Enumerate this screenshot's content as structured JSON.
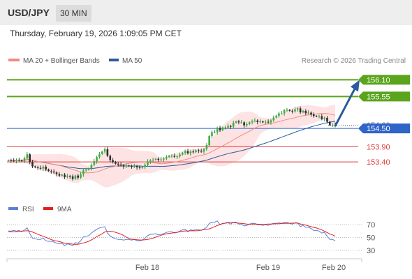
{
  "header": {
    "symbol": "USD/JPY",
    "timeframe": "30 MIN"
  },
  "datetime": "Thursday, February 19, 2026 1:09:05 PM CET",
  "legend": {
    "ma20_bb": "MA 20 + Bollinger Bands",
    "ma50": "MA 50",
    "credit": "Research © 2026 Trading Central",
    "rsi": "RSI",
    "rsi_ma": "9MA"
  },
  "colors": {
    "ma20": "#f28b82",
    "bands": "#fde3e3",
    "ma50": "#2c5a9c",
    "resistance": "#5aa51c",
    "support": "#e03b3b",
    "pivot": "#2f64c8",
    "arrow": "#2c5a9c",
    "rsi": "#5b7fd6",
    "rsi_ma": "#e02020"
  },
  "chart_data": [
    {
      "type": "candlestick",
      "title": "USD/JPY",
      "ylim": [
        152.3,
        156.5
      ],
      "levels": [
        {
          "value": 156.1,
          "label": "156.10",
          "kind": "resistance"
        },
        {
          "value": 155.55,
          "label": "155.55",
          "kind": "resistance"
        },
        {
          "value": 154.6,
          "label": "154.60",
          "kind": "current"
        },
        {
          "value": 154.5,
          "label": "154.50",
          "kind": "pivot"
        },
        {
          "value": 153.9,
          "label": "153.90",
          "kind": "support"
        },
        {
          "value": 153.4,
          "label": "153.40",
          "kind": "support"
        }
      ],
      "x_ticks": [
        "Feb 18",
        "Feb 19",
        "Feb 20"
      ],
      "close": [
        153.45,
        153.44,
        153.43,
        153.47,
        153.45,
        153.42,
        153.52,
        153.65,
        153.4,
        153.25,
        153.22,
        153.2,
        153.18,
        153.24,
        153.15,
        153.1,
        153.08,
        153.05,
        153.0,
        152.95,
        152.98,
        152.9,
        152.93,
        152.92,
        152.84,
        152.95,
        152.88,
        152.99,
        153.12,
        153.14,
        153.18,
        153.3,
        153.42,
        153.56,
        153.66,
        153.74,
        153.82,
        153.6,
        153.46,
        153.4,
        153.34,
        153.31,
        153.29,
        153.25,
        153.28,
        153.26,
        153.24,
        153.26,
        153.22,
        153.2,
        153.23,
        153.3,
        153.41,
        153.45,
        153.47,
        153.5,
        153.46,
        153.48,
        153.51,
        153.56,
        153.6,
        153.6,
        153.57,
        153.58,
        153.64,
        153.7,
        153.75,
        153.68,
        153.74,
        153.72,
        153.78,
        153.76,
        153.74,
        153.82,
        153.95,
        154.25,
        154.38,
        154.38,
        154.52,
        154.44,
        154.53,
        154.53,
        154.58,
        154.56,
        154.69,
        154.73,
        154.7,
        154.7,
        154.6,
        154.64,
        154.7,
        154.74,
        154.76,
        154.71,
        154.73,
        154.7,
        154.72,
        154.7,
        154.77,
        154.86,
        154.92,
        155.0,
        155.0,
        155.1,
        155.11,
        155.08,
        155.06,
        155.13,
        155.16,
        155.03,
        155.08,
        155.0,
        155.02,
        154.96,
        154.91,
        154.9,
        154.9,
        154.81,
        154.85,
        154.72,
        154.61,
        154.62,
        154.58
      ]
    },
    {
      "type": "line",
      "title": "RSI",
      "ylim": [
        20,
        80
      ],
      "y_ticks": [
        70,
        50,
        30
      ],
      "series": [
        {
          "name": "RSI",
          "values": [
            60,
            60,
            61,
            60,
            61,
            59,
            62,
            65,
            56,
            49,
            48,
            47,
            47,
            49,
            45,
            44,
            44,
            43,
            41,
            40,
            41,
            37,
            40,
            39,
            37,
            42,
            41,
            45,
            51,
            52,
            53,
            57,
            60,
            63,
            65,
            66,
            67,
            57,
            52,
            50,
            48,
            47,
            47,
            46,
            47,
            47,
            46,
            47,
            45,
            45,
            46,
            49,
            53,
            55,
            55,
            56,
            54,
            55,
            56,
            58,
            59,
            59,
            57,
            58,
            60,
            62,
            63,
            59,
            62,
            61,
            63,
            62,
            61,
            63,
            66,
            72,
            74,
            74,
            76,
            70,
            72,
            72,
            73,
            71,
            74,
            74,
            71,
            71,
            68,
            69,
            71,
            72,
            72,
            70,
            70,
            69,
            70,
            69,
            71,
            72,
            72,
            73,
            72,
            74,
            74,
            72,
            71,
            73,
            73,
            67,
            69,
            66,
            66,
            64,
            61,
            61,
            60,
            57,
            58,
            52,
            47,
            47,
            45
          ]
        },
        {
          "name": "9MA",
          "values": [
            59.0,
            59.0,
            59.0,
            59.2,
            59.6,
            60.0,
            60.3,
            60.6,
            59.9,
            58.6,
            56.9,
            55.1,
            53.4,
            52.0,
            50.3,
            48.5,
            46.7,
            45.2,
            44.5,
            43.6,
            42.5,
            40.7,
            40.6,
            40.2,
            39.6,
            39.2,
            39.5,
            40.2,
            41.5,
            42.6,
            44.1,
            46.3,
            48.4,
            51.6,
            53.5,
            55.9,
            58.6,
            59.6,
            59.7,
            59.2,
            58.2,
            56.8,
            55.3,
            53.2,
            50.6,
            48.6,
            47.4,
            46.9,
            46.4,
            46.2,
            46.1,
            46.5,
            47.1,
            47.8,
            49.0,
            50.6,
            52.0,
            53.5,
            54.7,
            55.8,
            56.4,
            57.0,
            57.6,
            58.2,
            58.8,
            59.8,
            60.3,
            60.3,
            60.5,
            60.6,
            60.5,
            60.8,
            61.6,
            62.3,
            62.8,
            63.5,
            65.1,
            67.0,
            68.7,
            70.3,
            71.7,
            72.7,
            73.8,
            74.0,
            73.5,
            72.8,
            72.5,
            72.1,
            71.6,
            70.9,
            70.8,
            71.0,
            71.0,
            70.8,
            70.6,
            70.4,
            70.6,
            70.9,
            71.1,
            71.3,
            71.4,
            71.6,
            71.9,
            72.1,
            72.1,
            72.3,
            72.5,
            72.6,
            72.4,
            71.2,
            70.5,
            69.4,
            68.1,
            66.9,
            65.8,
            64.8,
            63.4,
            61.8,
            59.8,
            57.8,
            55.4,
            54.0,
            52.1
          ]
        }
      ]
    }
  ]
}
